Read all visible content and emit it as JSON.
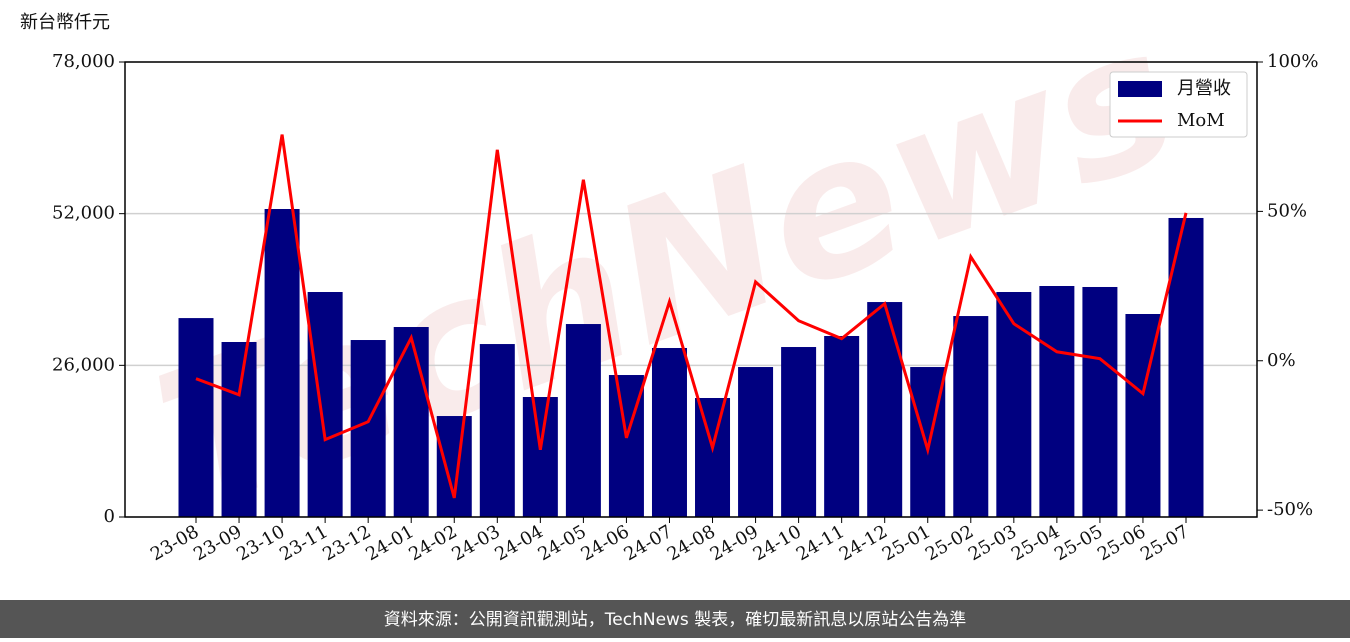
{
  "chart_data": {
    "type": "bar-line",
    "y_label": "新台幣仟元",
    "watermark": "TechNews",
    "source": "資料來源：公開資訊觀測站，TechNews 製表，確切最新訊息以原站公告為準",
    "categories": [
      "23-08",
      "23-09",
      "23-10",
      "23-11",
      "23-12",
      "24-01",
      "24-02",
      "24-03",
      "24-04",
      "24-05",
      "24-06",
      "24-07",
      "24-08",
      "24-09",
      "24-10",
      "24-11",
      "24-12",
      "25-01",
      "25-02",
      "25-03",
      "25-04",
      "25-05",
      "25-06",
      "25-07"
    ],
    "series": [
      {
        "name": "月營收",
        "color": "#000080",
        "kind": "bar",
        "values": [
          34100,
          30000,
          52800,
          38570,
          30340,
          32570,
          17310,
          29650,
          20570,
          33080,
          24340,
          28970,
          20400,
          25710,
          29140,
          31030,
          36850,
          25710,
          34450,
          38570,
          39600,
          39430,
          34800,
          51260
        ]
      },
      {
        "name": "MoM",
        "color": "#ff0000",
        "kind": "line",
        "axis": "y2",
        "values": [
          -6,
          -11.4,
          75.7,
          -26.4,
          -20.4,
          7.7,
          -45.9,
          70.6,
          -29.8,
          60.6,
          -25.8,
          19.8,
          -29.1,
          26.4,
          13.4,
          7.4,
          19.1,
          -29.8,
          34.8,
          12.4,
          3,
          0.7,
          -11,
          49.5
        ]
      }
    ],
    "ylim": [
      0,
      78000
    ],
    "yticks": [
      {
        "value": 0,
        "label": "0"
      },
      {
        "value": 26000,
        "label": "26,000"
      },
      {
        "value": 52000,
        "label": "52,000"
      },
      {
        "value": 78000,
        "label": "78,000"
      }
    ],
    "y2lim": [
      -52.3,
      100
    ],
    "y2ticks": [
      {
        "value": -50,
        "label": "-50%"
      },
      {
        "value": 0,
        "label": "0%"
      },
      {
        "value": 50,
        "label": "50%"
      },
      {
        "value": 100,
        "label": "100%"
      }
    ],
    "grid": true,
    "legend": "upper right"
  }
}
